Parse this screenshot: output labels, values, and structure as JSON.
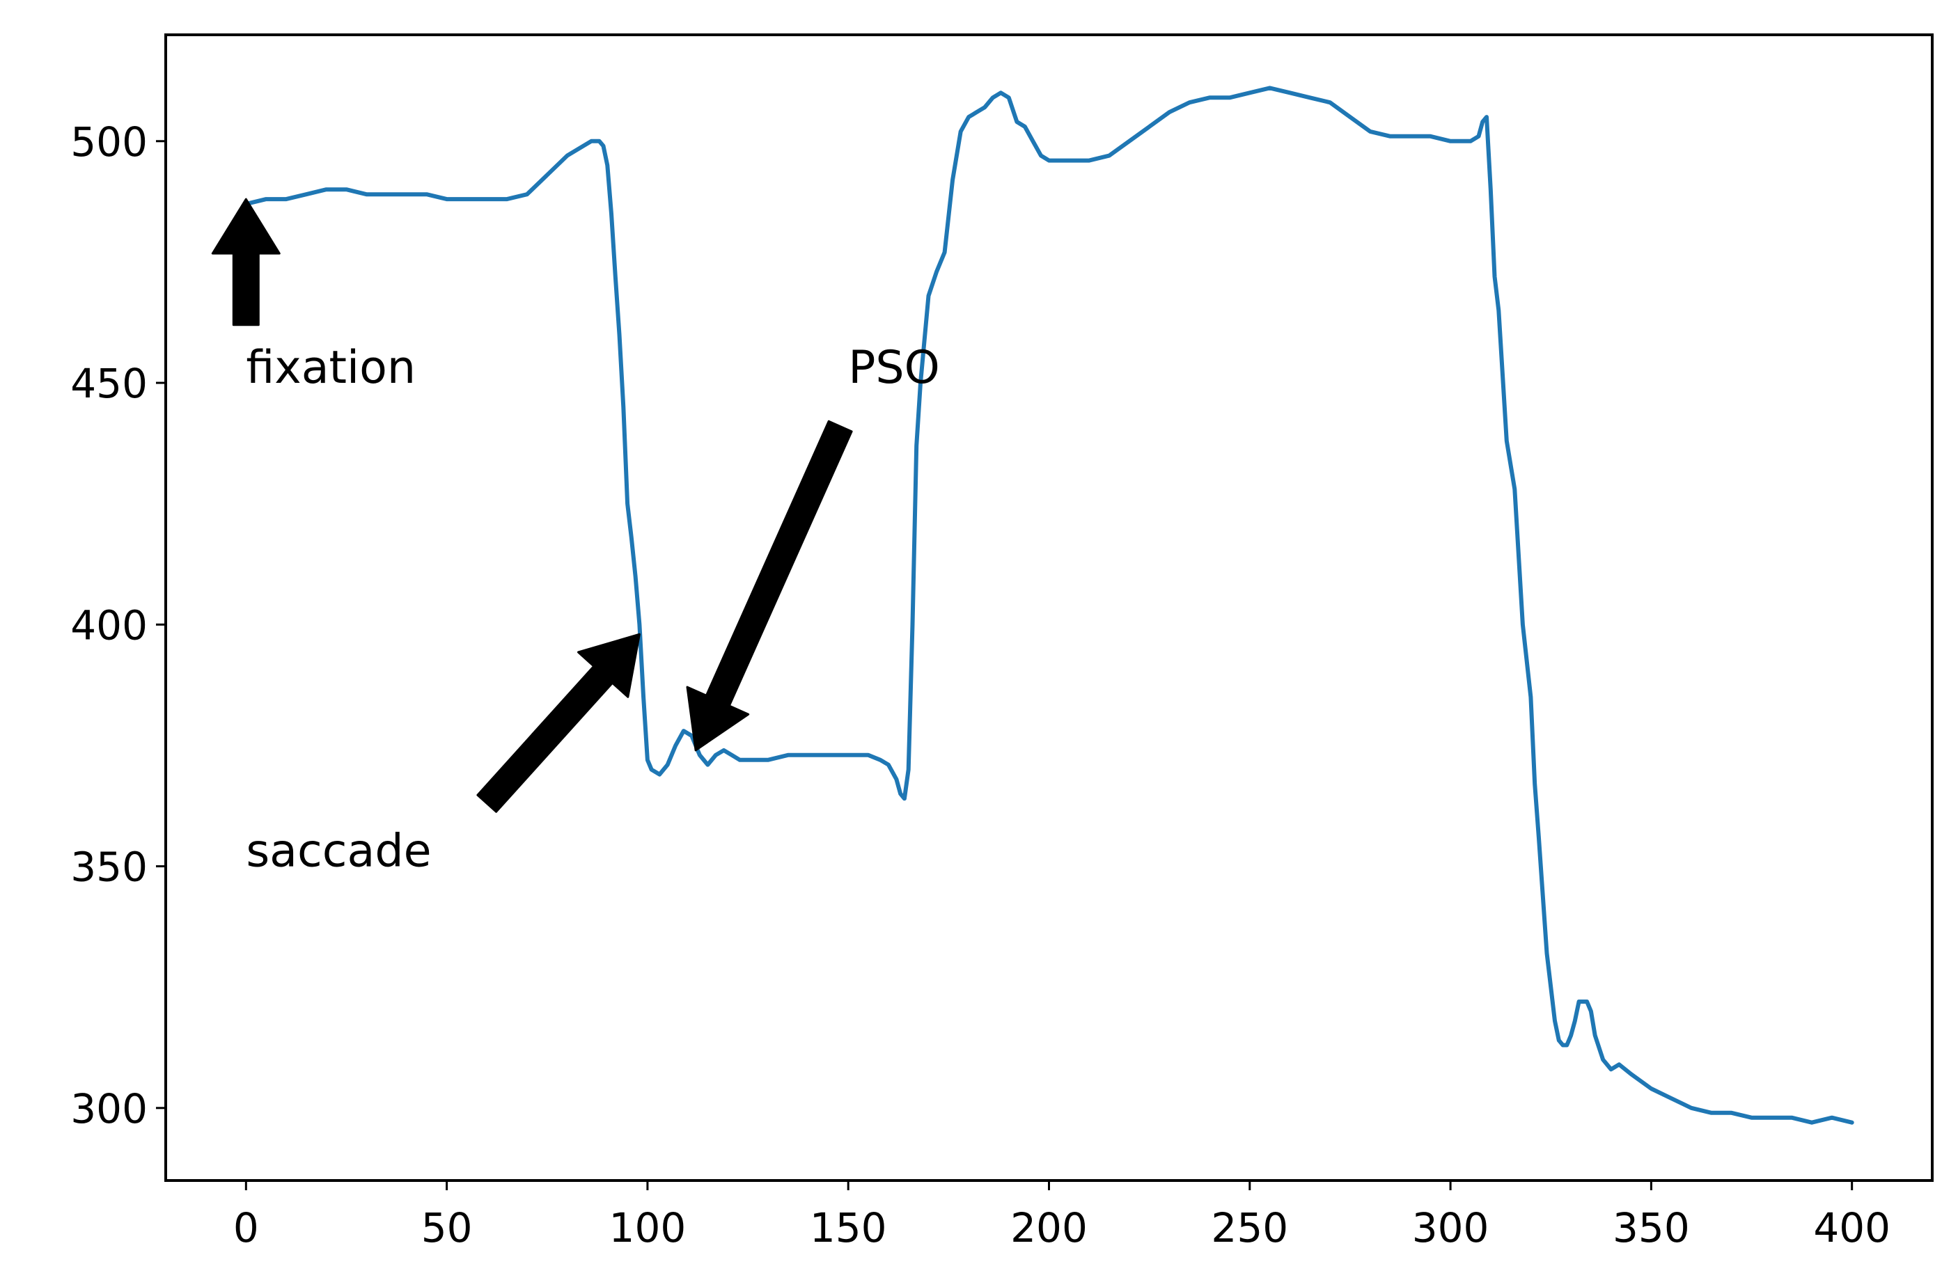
{
  "chart_data": {
    "type": "line",
    "title": "",
    "xlabel": "",
    "ylabel": "",
    "xlim": [
      -20,
      420
    ],
    "ylim": [
      285,
      522
    ],
    "xticks": [
      0,
      50,
      100,
      150,
      200,
      250,
      300,
      350,
      400
    ],
    "yticks": [
      300,
      350,
      400,
      450,
      500
    ],
    "grid": false,
    "legend": "none",
    "series": [
      {
        "color": "#1f77b4",
        "x": [
          0,
          5,
          10,
          15,
          20,
          25,
          30,
          35,
          40,
          45,
          50,
          55,
          60,
          65,
          70,
          75,
          80,
          84,
          86,
          88,
          89,
          90,
          91,
          92,
          93,
          94,
          95,
          96,
          97,
          98,
          99,
          100,
          101,
          103,
          105,
          107,
          109,
          111,
          113,
          115,
          117,
          119,
          121,
          123,
          125,
          127,
          130,
          135,
          140,
          145,
          150,
          155,
          158,
          160,
          162,
          163,
          164,
          165,
          166,
          167,
          168,
          170,
          172,
          174,
          176,
          178,
          180,
          182,
          184,
          186,
          188,
          190,
          192,
          194,
          196,
          198,
          200,
          205,
          210,
          215,
          220,
          225,
          230,
          235,
          240,
          245,
          250,
          255,
          260,
          265,
          270,
          275,
          280,
          285,
          290,
          295,
          300,
          303,
          305,
          307,
          308,
          309,
          310,
          311,
          312,
          314,
          316,
          318,
          320,
          321,
          322,
          324,
          326,
          327,
          328,
          329,
          330,
          331,
          332,
          333,
          334,
          335,
          336,
          338,
          340,
          342,
          345,
          350,
          355,
          360,
          365,
          370,
          375,
          380,
          385,
          390,
          395,
          400
        ],
        "values": [
          487,
          488,
          488,
          489,
          490,
          490,
          489,
          489,
          489,
          489,
          488,
          488,
          488,
          488,
          489,
          493,
          497,
          499,
          500,
          500,
          499,
          495,
          485,
          472,
          460,
          445,
          425,
          418,
          410,
          400,
          385,
          372,
          370,
          369,
          371,
          375,
          378,
          377,
          373,
          371,
          373,
          374,
          373,
          372,
          372,
          372,
          372,
          373,
          373,
          373,
          373,
          373,
          372,
          371,
          368,
          365,
          364,
          370,
          400,
          437,
          450,
          468,
          473,
          477,
          492,
          502,
          505,
          506,
          507,
          509,
          510,
          509,
          504,
          503,
          500,
          497,
          496,
          496,
          496,
          497,
          500,
          503,
          506,
          508,
          509,
          509,
          510,
          511,
          510,
          509,
          508,
          505,
          502,
          501,
          501,
          501,
          500,
          500,
          500,
          501,
          504,
          505,
          490,
          472,
          465,
          438,
          428,
          400,
          385,
          367,
          356,
          332,
          318,
          314,
          313,
          313,
          315,
          318,
          322,
          322,
          322,
          320,
          315,
          310,
          308,
          309,
          307,
          304,
          302,
          300,
          299,
          299,
          298,
          298,
          298,
          297,
          298,
          297
        ]
      }
    ],
    "annotations": [
      {
        "text": "fixation",
        "x": 0,
        "y": 450,
        "arrow_tail": [
          0,
          462
        ],
        "arrow_head": [
          0,
          488
        ]
      },
      {
        "text": "PSO",
        "x": 150,
        "y": 450,
        "arrow_tail": [
          148,
          441
        ],
        "arrow_head": [
          112,
          374
        ]
      },
      {
        "text": "saccade",
        "x": 0,
        "y": 350,
        "arrow_tail": [
          60,
          363
        ],
        "arrow_head": [
          98,
          398
        ]
      }
    ]
  }
}
